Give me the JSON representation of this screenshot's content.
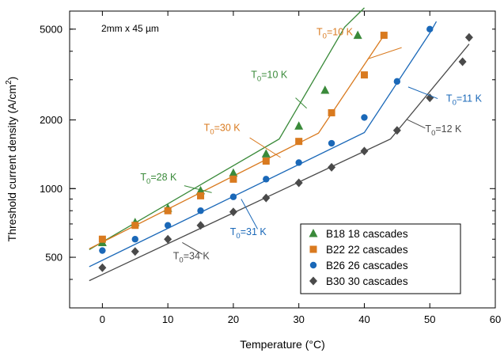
{
  "chart_data": {
    "type": "scatter",
    "xlabel": "Temperature (°C)",
    "ylabel_main": "Threshold current density (A/cm",
    "ylabel_sup": "2",
    "ylabel_close": ")",
    "sample_label": "2mm x 45 µm",
    "xlim": [
      -5,
      60
    ],
    "ylim": [
      300,
      6000
    ],
    "yscale": "log",
    "xticks": [
      0,
      10,
      20,
      30,
      40,
      50,
      60
    ],
    "yticks": [
      500,
      1000,
      2000,
      5000
    ],
    "grid": false,
    "legend_position": "bottom-right",
    "series": [
      {
        "name": "B18 18 cascades",
        "color": "#3a8a3a",
        "marker": "triangle",
        "x": [
          0,
          5,
          10,
          15,
          20,
          25,
          30,
          34,
          39
        ],
        "y": [
          580,
          710,
          820,
          980,
          1170,
          1420,
          1880,
          2700,
          4700
        ]
      },
      {
        "name": "B22 22 cascades",
        "color": "#d97a1f",
        "marker": "square",
        "x": [
          0,
          5,
          10,
          15,
          20,
          25,
          30,
          35,
          40,
          43
        ],
        "y": [
          600,
          690,
          800,
          930,
          1100,
          1320,
          1610,
          2150,
          3150,
          4700
        ]
      },
      {
        "name": "B26 26 cascades",
        "color": "#1a68b8",
        "marker": "circle",
        "x": [
          0,
          5,
          10,
          15,
          20,
          25,
          30,
          35,
          40,
          45,
          50
        ],
        "y": [
          535,
          600,
          690,
          800,
          920,
          1100,
          1300,
          1580,
          2050,
          2950,
          5000
        ]
      },
      {
        "name": "B30 30 cascades",
        "color": "#4a4a4a",
        "marker": "diamond",
        "x": [
          0,
          5,
          10,
          15,
          20,
          25,
          30,
          35,
          40,
          45,
          50,
          55,
          56
        ],
        "y": [
          450,
          530,
          600,
          690,
          790,
          910,
          1060,
          1240,
          1460,
          1800,
          2500,
          3600,
          4600
        ]
      }
    ],
    "fit_lines": [
      {
        "color": "#3a8a3a",
        "x": [
          -2,
          27,
          37,
          40
        ],
        "y": [
          540,
          1650,
          5100,
          6200
        ]
      },
      {
        "color": "#d97a1f",
        "x": [
          -2,
          33,
          43
        ],
        "y": [
          545,
          1750,
          4700
        ]
      },
      {
        "color": "#1a68b8",
        "x": [
          -2,
          40,
          50,
          51
        ],
        "y": [
          455,
          1760,
          4800,
          5400
        ]
      },
      {
        "color": "#4a4a4a",
        "x": [
          -2,
          44,
          56
        ],
        "y": [
          395,
          1650,
          4300
        ]
      }
    ],
    "annotations": [
      {
        "base": "T",
        "sub": "0",
        "rest": "=10 K",
        "color": "#d97a1f",
        "tx": 32.7,
        "ty": 4700,
        "lx": [
          40.5,
          45.7
        ],
        "ly": [
          3700,
          4150
        ]
      },
      {
        "base": "T",
        "sub": "0",
        "rest": "=10 K",
        "color": "#3a8a3a",
        "tx": 22.7,
        "ty": 3050,
        "lx": [
          29.5,
          31.2
        ],
        "ly": [
          2500,
          2250
        ]
      },
      {
        "base": "T",
        "sub": "0",
        "rest": "=11 K",
        "color": "#1a68b8",
        "tx": 52.5,
        "ty": 2400,
        "lx": [
          51.2,
          46.7
        ],
        "ly": [
          2480,
          2790
        ]
      },
      {
        "base": "T",
        "sub": "0",
        "rest": "=30 K",
        "color": "#d97a1f",
        "tx": 15.5,
        "ty": 1790,
        "lx": [
          22.5,
          27.2
        ],
        "ly": [
          1670,
          1370
        ]
      },
      {
        "base": "T",
        "sub": "0",
        "rest": "=12 K",
        "color": "#4a4a4a",
        "tx": 49.3,
        "ty": 1770,
        "lx": [
          49.3,
          46.5
        ],
        "ly": [
          1840,
          2010
        ]
      },
      {
        "base": "T",
        "sub": "0",
        "rest": "=28 K",
        "color": "#3a8a3a",
        "tx": 5.8,
        "ty": 1085,
        "lx": [
          12.5,
          16.7
        ],
        "ly": [
          1030,
          960
        ]
      },
      {
        "base": "T",
        "sub": "0",
        "rest": "=31 K",
        "color": "#1a68b8",
        "tx": 19.5,
        "ty": 625,
        "lx": [
          23.7,
          21.2
        ],
        "ly": [
          665,
          900
        ]
      },
      {
        "base": "T",
        "sub": "0",
        "rest": "=34 K",
        "color": "#4a4a4a",
        "tx": 10.8,
        "ty": 490,
        "lx": [
          15.3,
          12.2
        ],
        "ly": [
          515,
          580
        ]
      }
    ]
  }
}
